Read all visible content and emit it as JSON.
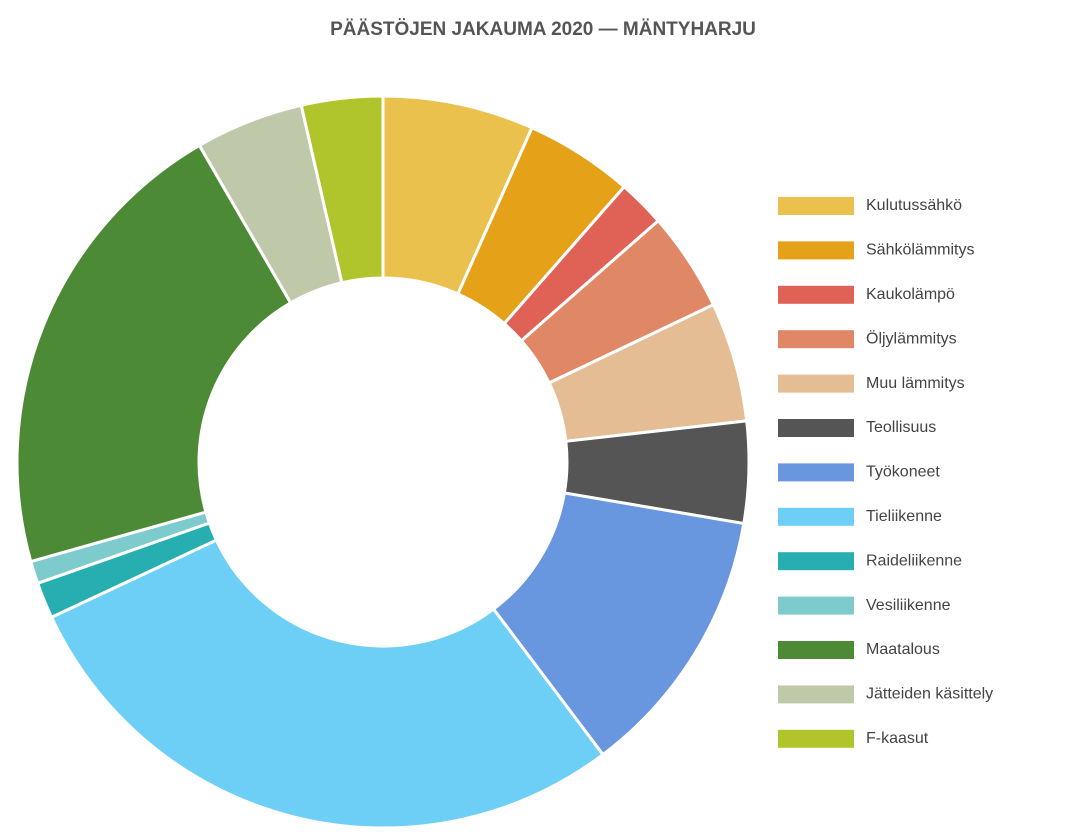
{
  "chart_data": {
    "type": "donut",
    "title": "PÄÄSTÖJEN JAKAUMA 2020 — MÄNTYHARJU",
    "categories": [
      "Kulutussähkö",
      "Sähkölämmitys",
      "Kaukolämpö",
      "Öljylämmitys",
      "Muu lämmitys",
      "Teollisuus",
      "Työkoneet",
      "Tieliikenne",
      "Raideliikenne",
      "Vesiliikenne",
      "Maatalous",
      "Jätteiden käsittely",
      "F-kaasut"
    ],
    "values": [
      6.7,
      4.8,
      2.1,
      4.4,
      5.3,
      4.5,
      12.1,
      28.4,
      1.6,
      1.0,
      21.1,
      4.8,
      3.6
    ],
    "colors": [
      "#ebc14e",
      "#e5a117",
      "#e06155",
      "#e08766",
      "#e5bd95",
      "#555555",
      "#6897df",
      "#6dcff6",
      "#27aeb0",
      "#7dcbcc",
      "#4d8a35",
      "#c0c8aa",
      "#b0c42b"
    ],
    "legend": "right"
  }
}
